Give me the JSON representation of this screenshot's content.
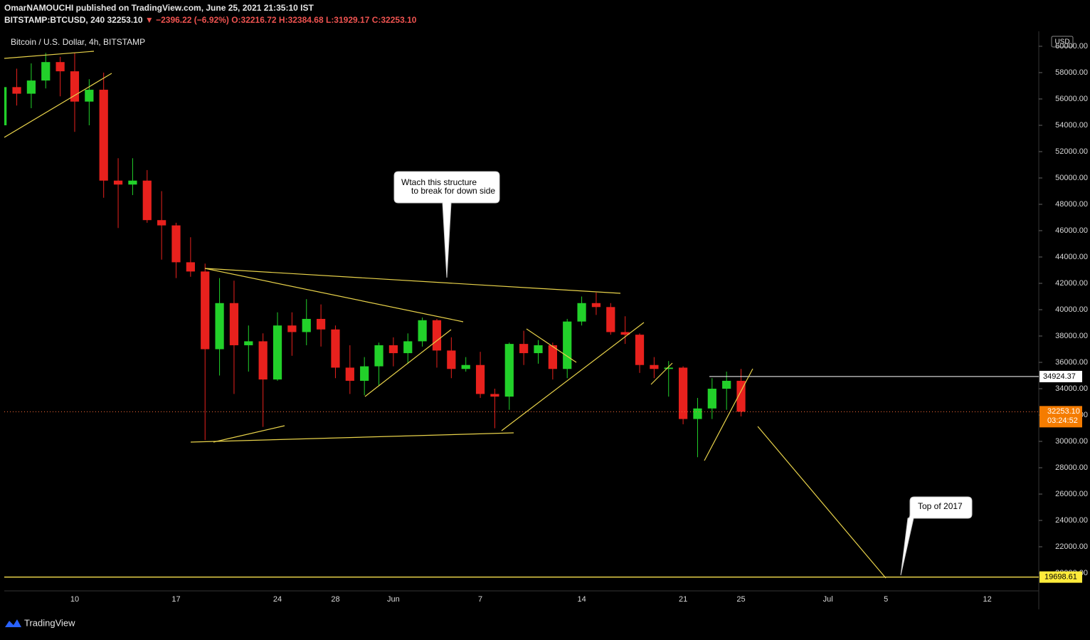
{
  "header": {
    "published": "OmarNAMOUCHI published on TradingView.com, June 25, 2021 21:35:10 IST",
    "symbol": "BITSTAMP:BTCUSD, 240",
    "last": "32253.10",
    "change": "▼ −2396.22 (−6.92%)",
    "open": "O:32216.72",
    "high": "H:32384.68",
    "low": "L:31929.17",
    "close": "C:32253.10"
  },
  "footer": {
    "brand": "TradingView"
  },
  "chart_data": {
    "type": "candlestick",
    "title": "Bitcoin / U.S. Dollar, 4h, BITSTAMP",
    "currency": "USD",
    "categories": [
      null,
      null,
      null,
      null,
      null,
      "10",
      null,
      null,
      null,
      null,
      null,
      null,
      "17",
      null,
      null,
      null,
      null,
      null,
      null,
      "24",
      null,
      null,
      null,
      "28",
      null,
      null,
      null,
      "Jun",
      null,
      null,
      null,
      null,
      null,
      "7",
      null,
      null,
      null,
      null,
      null,
      null,
      "14",
      null,
      null,
      null,
      null,
      null,
      null,
      "21",
      null,
      null,
      null,
      "25",
      null,
      null,
      null,
      null,
      null,
      "Jul",
      null,
      null,
      null,
      "5",
      null,
      null,
      null,
      null,
      null,
      null,
      "12",
      null,
      null
    ],
    "open": [
      54000,
      56900,
      56400,
      57400,
      58800,
      58100,
      55800,
      56700,
      49800,
      49500,
      49800,
      46800,
      46400,
      43600,
      42900,
      37000,
      40500,
      37300,
      37600,
      34700,
      38800,
      38300,
      39300,
      38500,
      35600,
      34600,
      35700,
      37300,
      36700,
      37600,
      39200,
      36900,
      35500,
      35800,
      33600,
      33400,
      37400,
      36700,
      37300,
      35500,
      39100,
      40500,
      40200,
      38300,
      38100,
      35800,
      35500,
      35600,
      31700,
      32500,
      34000,
      34600,
      null,
      null,
      null,
      null,
      null,
      null,
      null,
      null,
      null,
      null,
      null,
      null,
      null,
      null,
      null,
      null,
      null,
      null,
      null
    ],
    "high": [
      57000,
      58300,
      58700,
      59500,
      59200,
      59500,
      57500,
      58000,
      51500,
      51500,
      50600,
      49000,
      46600,
      45500,
      43500,
      42400,
      42200,
      38800,
      38200,
      39800,
      39800,
      40800,
      40400,
      38800,
      37300,
      36400,
      37500,
      37900,
      38200,
      39400,
      39300,
      37900,
      36400,
      36800,
      34000,
      37500,
      38400,
      37700,
      37500,
      39300,
      41000,
      41300,
      40500,
      39500,
      38200,
      36400,
      36100,
      35700,
      33300,
      34800,
      35300,
      35500,
      null,
      null,
      null,
      null,
      null,
      null,
      null,
      null,
      null,
      null,
      null,
      null,
      null,
      null,
      null,
      null,
      null,
      null,
      null
    ],
    "low": [
      53500,
      55500,
      55300,
      56800,
      56200,
      53500,
      54000,
      48500,
      46200,
      48700,
      46600,
      43800,
      42400,
      42500,
      30100,
      35000,
      33600,
      35300,
      31100,
      34600,
      36500,
      37300,
      37200,
      34800,
      33600,
      33500,
      34200,
      35700,
      35900,
      37200,
      35600,
      34800,
      35300,
      33300,
      31000,
      32400,
      35800,
      35900,
      34700,
      34800,
      38800,
      39600,
      38100,
      37400,
      35200,
      34800,
      33400,
      31300,
      28800,
      31700,
      32400,
      31900,
      null,
      null,
      null,
      null,
      null,
      null,
      null,
      null,
      null,
      null,
      null,
      null,
      null,
      null,
      null,
      null,
      null,
      null,
      null
    ],
    "close": [
      56900,
      56400,
      57400,
      58800,
      58100,
      55800,
      56700,
      49800,
      49500,
      49800,
      46800,
      46400,
      43600,
      42900,
      37000,
      40500,
      37300,
      37600,
      34700,
      38800,
      38300,
      39300,
      38500,
      35600,
      34600,
      35700,
      37300,
      36700,
      37600,
      39200,
      36900,
      35500,
      35800,
      33600,
      33400,
      37400,
      36700,
      37300,
      35500,
      39100,
      40500,
      40200,
      38300,
      38100,
      35800,
      35500,
      35600,
      31700,
      32500,
      34000,
      34600,
      32253.1,
      null,
      null,
      null,
      null,
      null,
      null,
      null,
      null,
      null,
      null,
      null,
      null,
      null,
      null,
      null,
      null,
      null,
      null,
      null
    ],
    "up_color": "#22d12a",
    "down_color": "#e8211d",
    "ylim": [
      18650,
      61135
    ],
    "yticks": [
      {
        "value": 20000,
        "label": "20000.00"
      },
      {
        "value": 22000,
        "label": "22000.00"
      },
      {
        "value": 24000,
        "label": "24000.00"
      },
      {
        "value": 26000,
        "label": "26000.00"
      },
      {
        "value": 28000,
        "label": "28000.00"
      },
      {
        "value": 30000,
        "label": "30000.00"
      },
      {
        "value": 32000,
        "label": "32000.00"
      },
      {
        "value": 34000,
        "label": "34000.00"
      },
      {
        "value": 36000,
        "label": "36000.00"
      },
      {
        "value": 38000,
        "label": "38000.00"
      },
      {
        "value": 40000,
        "label": "40000.00"
      },
      {
        "value": 42000,
        "label": "42000.00"
      },
      {
        "value": 44000,
        "label": "44000.00"
      },
      {
        "value": 46000,
        "label": "46000.00"
      },
      {
        "value": 48000,
        "label": "48000.00"
      },
      {
        "value": 50000,
        "label": "50000.00"
      },
      {
        "value": 52000,
        "label": "52000.00"
      },
      {
        "value": 54000,
        "label": "54000.00"
      },
      {
        "value": 56000,
        "label": "56000.00"
      },
      {
        "value": 58000,
        "label": "58000.00"
      },
      {
        "value": 60000,
        "label": "60000.00"
      }
    ],
    "last_price": {
      "value": 32253.1,
      "label": "32253.10"
    },
    "countdown": "03:24:52",
    "resistance_level": 34924.37,
    "target_level": 19698.61,
    "annotations": [
      {
        "line1": "Wtach this structure",
        "line2": "to break for down side"
      },
      {
        "line1": "Top of 2017"
      }
    ]
  }
}
